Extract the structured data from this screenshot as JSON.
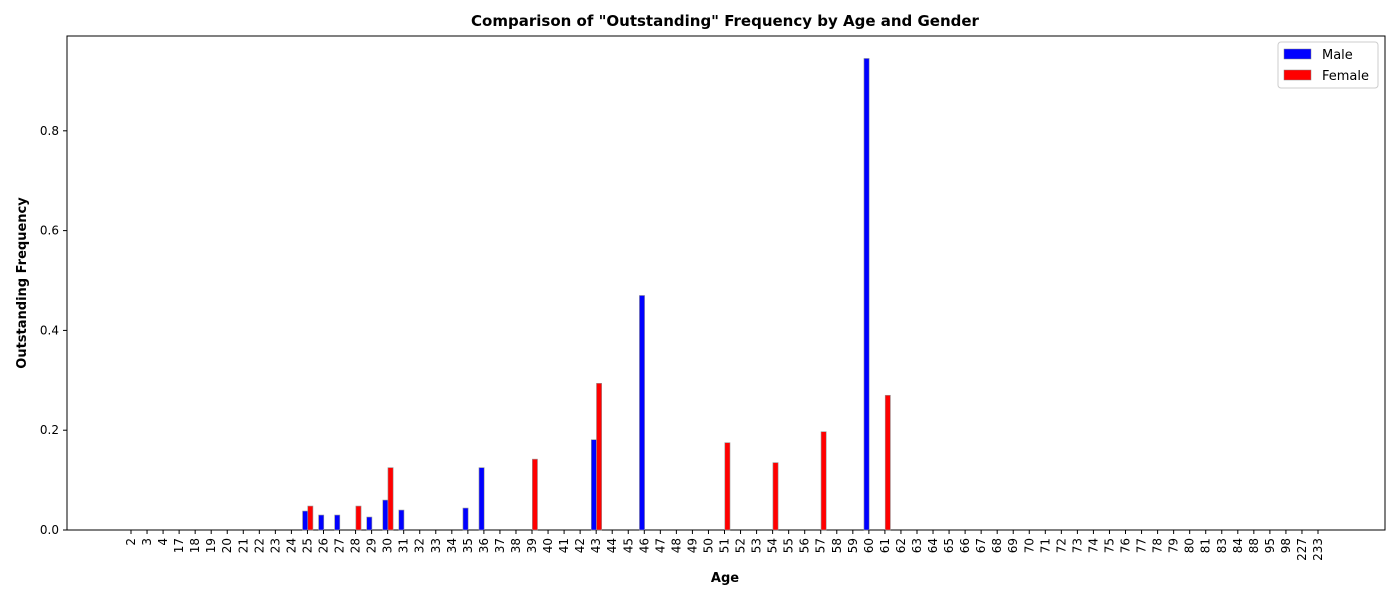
{
  "chart_data": {
    "type": "bar",
    "title": "Comparison of \"Outstanding\" Frequency by Age and Gender",
    "xlabel": "Age",
    "ylabel": "Outstanding Frequency",
    "ylim": [
      0,
      0.99
    ],
    "yticks": [
      0.0,
      0.2,
      0.4,
      0.6,
      0.8
    ],
    "grid": false,
    "legend_position": "top-right",
    "categories": [
      "2",
      "3",
      "4",
      "17",
      "18",
      "19",
      "20",
      "21",
      "22",
      "23",
      "24",
      "25",
      "26",
      "27",
      "28",
      "29",
      "30",
      "31",
      "32",
      "33",
      "34",
      "35",
      "36",
      "37",
      "38",
      "39",
      "40",
      "41",
      "42",
      "43",
      "44",
      "45",
      "46",
      "47",
      "48",
      "49",
      "50",
      "51",
      "52",
      "53",
      "54",
      "55",
      "56",
      "57",
      "58",
      "59",
      "60",
      "61",
      "62",
      "63",
      "64",
      "65",
      "66",
      "67",
      "68",
      "69",
      "70",
      "71",
      "72",
      "73",
      "74",
      "75",
      "76",
      "77",
      "78",
      "79",
      "80",
      "81",
      "83",
      "84",
      "88",
      "95",
      "98",
      "227",
      "233"
    ],
    "series": [
      {
        "name": "Male",
        "color": "#0000ff",
        "values": [
          0,
          0,
          0,
          0,
          0,
          0,
          0,
          0,
          0,
          0,
          0,
          0.038,
          0.03,
          0.03,
          0,
          0.026,
          0.06,
          0.04,
          0,
          0,
          0,
          0.044,
          0.125,
          0,
          0,
          0,
          0,
          0,
          0,
          0.181,
          0,
          0,
          0.47,
          0,
          0,
          0,
          0,
          0,
          0,
          0,
          0,
          0,
          0,
          0,
          0,
          0,
          0.945,
          0,
          0,
          0,
          0,
          0,
          0,
          0,
          0,
          0,
          0,
          0,
          0,
          0,
          0,
          0,
          0,
          0,
          0,
          0,
          0,
          0,
          0,
          0,
          0,
          0,
          0,
          0,
          0
        ]
      },
      {
        "name": "Female",
        "color": "#ff0000",
        "values": [
          0,
          0,
          0,
          0,
          0,
          0,
          0,
          0,
          0,
          0,
          0,
          0.048,
          0,
          0,
          0.048,
          0,
          0.125,
          0,
          0,
          0,
          0,
          0,
          0,
          0,
          0,
          0.142,
          0,
          0,
          0,
          0.294,
          0,
          0,
          0,
          0,
          0,
          0,
          0,
          0.175,
          0,
          0,
          0.135,
          0,
          0,
          0.197,
          0,
          0,
          0,
          0.27,
          0,
          0,
          0,
          0,
          0,
          0,
          0,
          0,
          0,
          0,
          0,
          0,
          0,
          0,
          0,
          0,
          0,
          0,
          0,
          0,
          0,
          0,
          0,
          0,
          0,
          0,
          0
        ]
      }
    ]
  }
}
